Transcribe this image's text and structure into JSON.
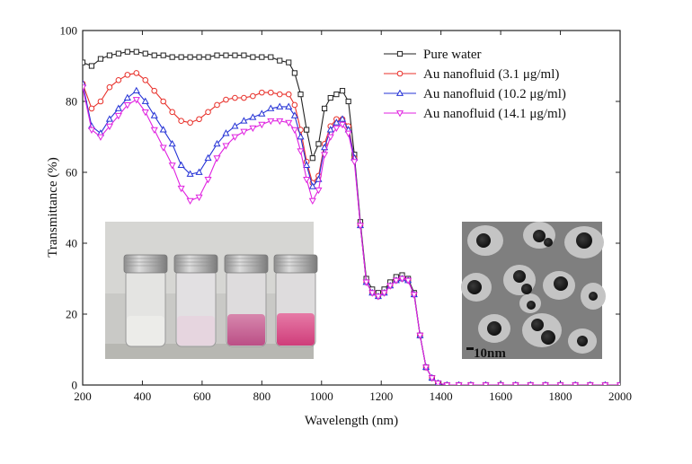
{
  "chart_data": {
    "type": "line",
    "title": "",
    "xlabel": "Wavelength (nm)",
    "ylabel": "Transmittance (%)",
    "xlim": [
      200,
      2000
    ],
    "ylim": [
      0,
      100
    ],
    "xticks": [
      200,
      400,
      600,
      800,
      1000,
      1200,
      1400,
      1600,
      1800,
      2000
    ],
    "yticks": [
      0,
      20,
      40,
      60,
      80,
      100
    ],
    "grid": false,
    "legend_position": "top-right",
    "x": [
      200,
      230,
      260,
      290,
      320,
      350,
      380,
      410,
      440,
      470,
      500,
      530,
      560,
      590,
      620,
      650,
      680,
      710,
      740,
      770,
      800,
      830,
      860,
      890,
      910,
      930,
      950,
      970,
      990,
      1010,
      1030,
      1050,
      1070,
      1090,
      1110,
      1130,
      1150,
      1170,
      1190,
      1210,
      1230,
      1250,
      1270,
      1290,
      1310,
      1330,
      1350,
      1370,
      1390,
      1420,
      1460,
      1500,
      1550,
      1600,
      1650,
      1700,
      1750,
      1800,
      1850,
      1900,
      1950,
      2000
    ],
    "series": [
      {
        "name": "Pure water",
        "color": "#222222",
        "marker": "square",
        "values": [
          91,
          90,
          92,
          93,
          93.5,
          94,
          94,
          93.5,
          93,
          93,
          92.5,
          92.5,
          92.5,
          92.5,
          92.5,
          93,
          93,
          93,
          93,
          92.5,
          92.5,
          92.5,
          91.5,
          91,
          88,
          82,
          72,
          64,
          68,
          78,
          81,
          82,
          83,
          80,
          65,
          46,
          30,
          27,
          26,
          27,
          29,
          30.5,
          31,
          30,
          26,
          14,
          5,
          2,
          0.5,
          0,
          0,
          0,
          0,
          0,
          0,
          0,
          0,
          0,
          0,
          0,
          0,
          0
        ]
      },
      {
        "name": "Au nanofluid  (3.1 μg/ml)",
        "color": "#e8302a",
        "marker": "circle",
        "values": [
          85,
          78,
          80,
          84,
          86,
          87.5,
          88,
          86,
          83,
          80,
          77,
          74.5,
          74,
          75,
          77,
          79,
          80.5,
          81,
          81,
          81.5,
          82.5,
          82.5,
          82,
          82,
          79,
          72,
          63,
          57,
          59,
          68,
          73,
          75,
          75,
          73,
          64,
          45,
          29,
          26,
          25,
          26,
          28,
          29.5,
          30,
          29.5,
          25.5,
          14,
          5,
          2,
          0.5,
          0,
          0,
          0,
          0,
          0,
          0,
          0,
          0,
          0,
          0,
          0,
          0,
          0
        ]
      },
      {
        "name": "Au nanofluid  (10.2 μg/ml)",
        "color": "#2533d6",
        "marker": "triangle-up",
        "values": [
          85,
          73,
          71,
          75,
          78,
          81,
          83,
          80,
          76,
          72,
          68,
          62,
          59.5,
          60,
          64,
          68,
          71,
          73,
          74.5,
          75.5,
          76.5,
          78,
          78.5,
          78.5,
          76,
          70,
          62,
          56,
          58,
          67,
          72,
          74,
          75,
          72,
          64,
          45,
          29,
          26,
          25,
          26,
          28,
          29.5,
          30,
          29.5,
          25.5,
          14,
          5,
          2,
          0.5,
          0,
          0,
          0,
          0,
          0,
          0,
          0,
          0,
          0,
          0,
          0,
          0,
          0
        ]
      },
      {
        "name": "Au nanofluid  (14.1 μg/ml)",
        "color": "#e022e0",
        "marker": "triangle-down",
        "values": [
          84,
          72,
          70,
          73,
          76,
          79,
          80.5,
          77,
          72,
          67,
          62,
          55.5,
          52,
          53,
          58,
          64,
          67.5,
          70,
          71.5,
          72.5,
          73.5,
          74.5,
          74.5,
          74,
          72,
          66,
          58,
          52,
          55,
          65,
          70,
          72.5,
          73.5,
          71,
          63,
          45,
          29,
          26,
          25,
          26,
          28,
          29.5,
          30,
          29.5,
          25.5,
          14,
          5,
          2,
          0.5,
          0,
          0,
          0,
          0,
          0,
          0,
          0,
          0,
          0,
          0,
          0,
          0,
          0
        ]
      }
    ],
    "annotations": {
      "scale_bar_label": "10nm"
    }
  }
}
